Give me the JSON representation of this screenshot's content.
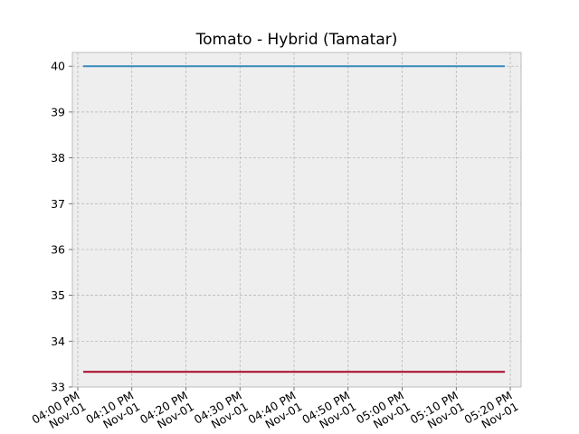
{
  "chart_data": {
    "type": "line",
    "title": "Tomato - Hybrid (Tamatar)",
    "xlabel": "",
    "ylabel": "",
    "x_ticks": [
      [
        "04:00 PM",
        "Nov-01"
      ],
      [
        "04:10 PM",
        "Nov-01"
      ],
      [
        "04:20 PM",
        "Nov-01"
      ],
      [
        "04:30 PM",
        "Nov-01"
      ],
      [
        "04:40 PM",
        "Nov-01"
      ],
      [
        "04:50 PM",
        "Nov-01"
      ],
      [
        "05:00 PM",
        "Nov-01"
      ],
      [
        "05:10 PM",
        "Nov-01"
      ],
      [
        "05:20 PM",
        "Nov-01"
      ]
    ],
    "y_ticks": [
      33,
      34,
      35,
      36,
      37,
      38,
      39,
      40
    ],
    "ylim": [
      33,
      40.3
    ],
    "xlim": [
      "Nov-01 03:59 PM",
      "Nov-01 05:22 PM"
    ],
    "x": [
      "Nov-01 04:01 PM",
      "Nov-01 05:19 PM"
    ],
    "series": [
      {
        "values": [
          40,
          40
        ],
        "color": "#348abd"
      },
      {
        "values": [
          33.33,
          33.33
        ],
        "color": "#a60628"
      }
    ],
    "grid": true,
    "legend": "none",
    "background": "#eeeeee",
    "grid_color": "#b0b0b0"
  }
}
